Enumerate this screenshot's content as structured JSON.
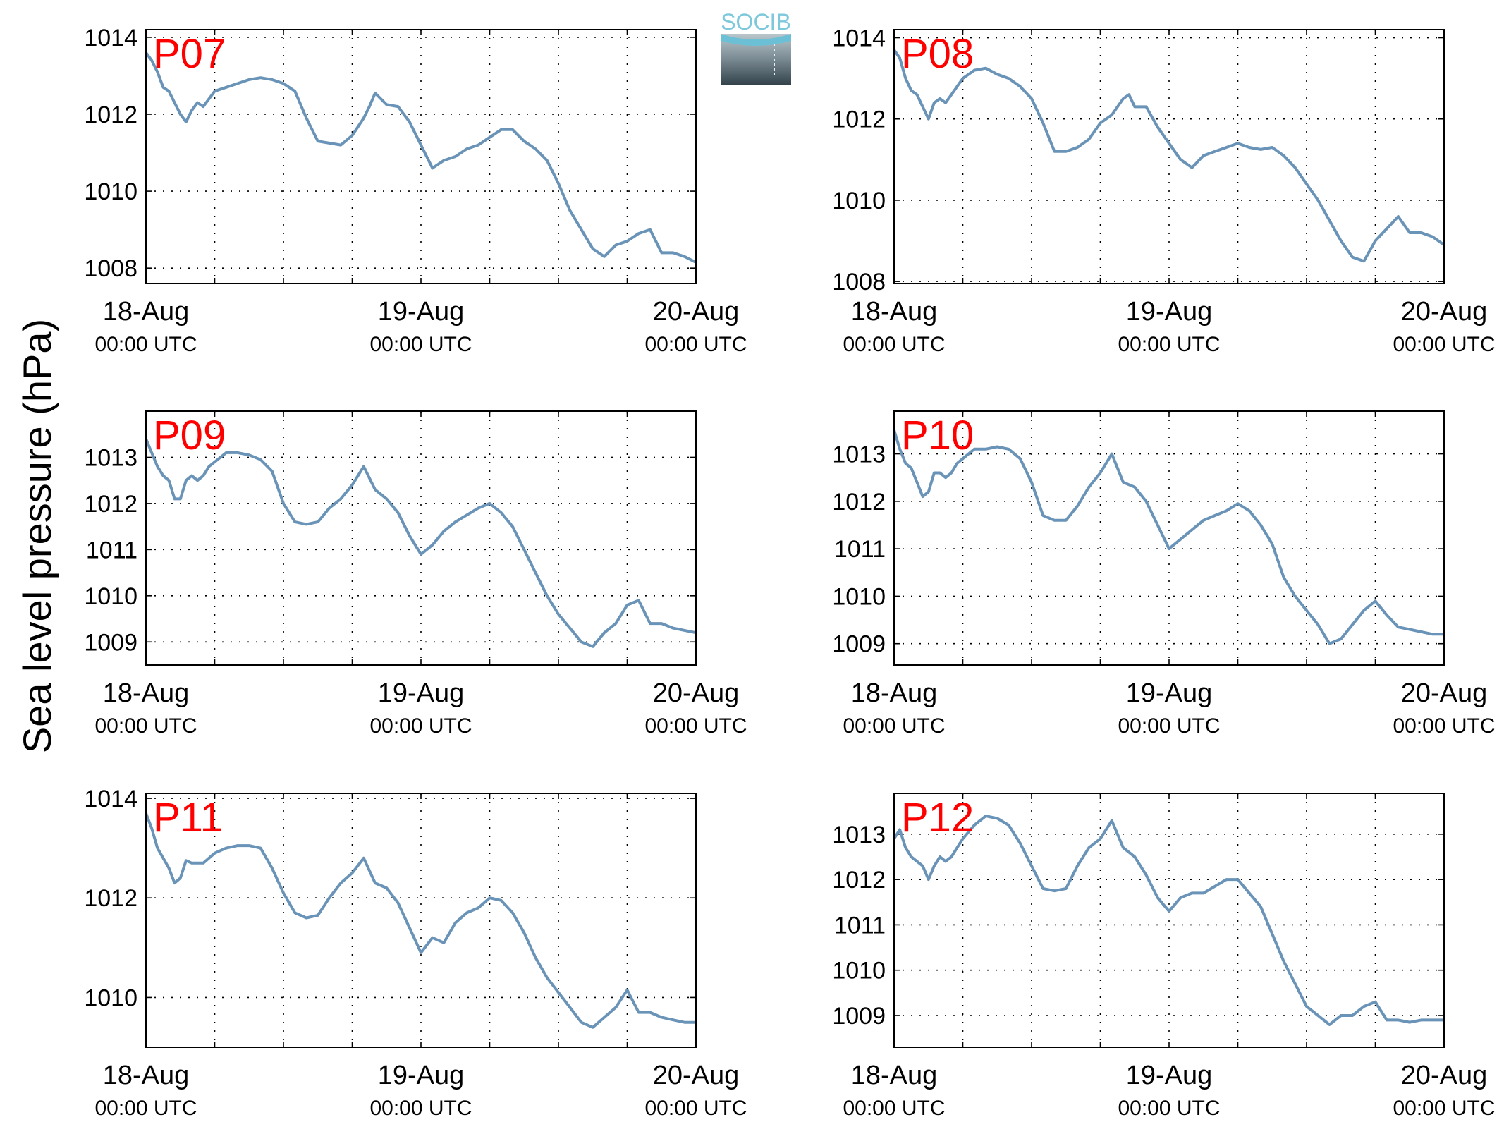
{
  "figure": {
    "ylabel": "Sea level pressure (hPa)",
    "logo_text": "SOCIB"
  },
  "colors": {
    "series_line": "#6a93b8",
    "panel_label": "#ff0000",
    "logo_text": "#7ec8dc",
    "axis": "#000000"
  },
  "chart_data": [
    {
      "type": "line",
      "title": "P07",
      "xlabel": "",
      "ylabel": "",
      "x_ticks": [
        {
          "date": "18-Aug",
          "time": "00:00 UTC"
        },
        {
          "date": "19-Aug",
          "time": "00:00 UTC"
        },
        {
          "date": "20-Aug",
          "time": "00:00 UTC"
        }
      ],
      "xlim": [
        0,
        48
      ],
      "ylim": [
        1007.6,
        1014.2
      ],
      "yticks": [
        1008,
        1010,
        1012,
        1014
      ],
      "grid": true,
      "series": [
        {
          "x": [
            0,
            0.5,
            1,
            1.5,
            2,
            2.5,
            3,
            3.5,
            4,
            4.5,
            5,
            5.5,
            6,
            7,
            8,
            9,
            10,
            11,
            12,
            13,
            14,
            15,
            16,
            17,
            18,
            19,
            19.5,
            20,
            21,
            22,
            23,
            24,
            25,
            26,
            27,
            28,
            29,
            30,
            31,
            32,
            33,
            34,
            35,
            36,
            37,
            38,
            39,
            40,
            41,
            42,
            43,
            44,
            45,
            46,
            47,
            48
          ],
          "y": [
            1013.6,
            1013.4,
            1013.1,
            1012.7,
            1012.6,
            1012.3,
            1012.0,
            1011.8,
            1012.1,
            1012.3,
            1012.2,
            1012.4,
            1012.6,
            1012.7,
            1012.8,
            1012.9,
            1012.95,
            1012.9,
            1012.8,
            1012.6,
            1011.9,
            1011.3,
            1011.25,
            1011.2,
            1011.45,
            1011.9,
            1012.2,
            1012.55,
            1012.25,
            1012.2,
            1011.8,
            1011.2,
            1010.6,
            1010.8,
            1010.9,
            1011.1,
            1011.2,
            1011.4,
            1011.6,
            1011.6,
            1011.3,
            1011.1,
            1010.8,
            1010.2,
            1009.5,
            1009.0,
            1008.5,
            1008.3,
            1008.6,
            1008.7,
            1008.9,
            1009.0,
            1008.4,
            1008.4,
            1008.3,
            1008.15
          ]
        }
      ]
    },
    {
      "type": "line",
      "title": "P08",
      "xlabel": "",
      "ylabel": "",
      "x_ticks": [
        {
          "date": "18-Aug",
          "time": "00:00 UTC"
        },
        {
          "date": "19-Aug",
          "time": "00:00 UTC"
        },
        {
          "date": "20-Aug",
          "time": "00:00 UTC"
        }
      ],
      "xlim": [
        0,
        48
      ],
      "ylim": [
        1007.95,
        1014.2
      ],
      "yticks": [
        1008,
        1010,
        1012,
        1014
      ],
      "grid": true,
      "series": [
        {
          "x": [
            0,
            0.5,
            1,
            1.5,
            2,
            2.5,
            3,
            3.5,
            4,
            4.5,
            5,
            5.5,
            6,
            7,
            8,
            9,
            10,
            11,
            12,
            13,
            14,
            15,
            16,
            17,
            18,
            19,
            20,
            20.5,
            21,
            22,
            23,
            24,
            25,
            26,
            27,
            28,
            29,
            30,
            31,
            32,
            33,
            34,
            35,
            36,
            37,
            38,
            39,
            40,
            41,
            42,
            43,
            44,
            45,
            46,
            47,
            48
          ],
          "y": [
            1013.7,
            1013.5,
            1013.0,
            1012.7,
            1012.6,
            1012.3,
            1012.0,
            1012.4,
            1012.5,
            1012.4,
            1012.6,
            1012.8,
            1013.0,
            1013.2,
            1013.25,
            1013.1,
            1013.0,
            1012.8,
            1012.5,
            1011.9,
            1011.2,
            1011.2,
            1011.3,
            1011.5,
            1011.9,
            1012.1,
            1012.5,
            1012.6,
            1012.3,
            1012.3,
            1011.8,
            1011.4,
            1011.0,
            1010.8,
            1011.1,
            1011.2,
            1011.3,
            1011.4,
            1011.3,
            1011.25,
            1011.3,
            1011.1,
            1010.8,
            1010.4,
            1010.0,
            1009.5,
            1009.0,
            1008.6,
            1008.5,
            1009.0,
            1009.3,
            1009.6,
            1009.2,
            1009.2,
            1009.1,
            1008.9
          ]
        }
      ]
    },
    {
      "type": "line",
      "title": "P09",
      "xlabel": "",
      "ylabel": "",
      "x_ticks": [
        {
          "date": "18-Aug",
          "time": "00:00 UTC"
        },
        {
          "date": "19-Aug",
          "time": "00:00 UTC"
        },
        {
          "date": "20-Aug",
          "time": "00:00 UTC"
        }
      ],
      "xlim": [
        0,
        48
      ],
      "ylim": [
        1008.5,
        1014.0
      ],
      "yticks": [
        1009,
        1010,
        1011,
        1012,
        1013
      ],
      "grid": true,
      "series": [
        {
          "x": [
            0,
            0.5,
            1,
            1.5,
            2,
            2.5,
            3,
            3.5,
            4,
            4.5,
            5,
            5.5,
            6,
            7,
            8,
            9,
            10,
            11,
            12,
            13,
            14,
            15,
            16,
            17,
            18,
            19,
            20,
            21,
            22,
            23,
            24,
            25,
            26,
            27,
            28,
            29,
            30,
            31,
            32,
            33,
            34,
            35,
            36,
            37,
            38,
            39,
            40,
            41,
            42,
            43,
            44,
            45,
            46,
            47,
            48
          ],
          "y": [
            1013.4,
            1013.1,
            1012.8,
            1012.6,
            1012.5,
            1012.1,
            1012.1,
            1012.5,
            1012.6,
            1012.5,
            1012.6,
            1012.8,
            1012.9,
            1013.1,
            1013.1,
            1013.05,
            1012.95,
            1012.7,
            1012.0,
            1011.6,
            1011.55,
            1011.6,
            1011.9,
            1012.1,
            1012.4,
            1012.8,
            1012.3,
            1012.1,
            1011.8,
            1011.3,
            1010.9,
            1011.1,
            1011.4,
            1011.6,
            1011.75,
            1011.9,
            1012.0,
            1011.8,
            1011.5,
            1011.0,
            1010.5,
            1010.0,
            1009.6,
            1009.3,
            1009.0,
            1008.9,
            1009.2,
            1009.4,
            1009.8,
            1009.9,
            1009.4,
            1009.4,
            1009.3,
            1009.25,
            1009.2
          ]
        }
      ]
    },
    {
      "type": "line",
      "title": "P10",
      "xlabel": "",
      "ylabel": "",
      "x_ticks": [
        {
          "date": "18-Aug",
          "time": "00:00 UTC"
        },
        {
          "date": "19-Aug",
          "time": "00:00 UTC"
        },
        {
          "date": "20-Aug",
          "time": "00:00 UTC"
        }
      ],
      "xlim": [
        0,
        48
      ],
      "ylim": [
        1008.55,
        1013.9
      ],
      "yticks": [
        1009,
        1010,
        1011,
        1012,
        1013
      ],
      "grid": true,
      "series": [
        {
          "x": [
            0,
            0.5,
            1,
            1.5,
            2,
            2.5,
            3,
            3.5,
            4,
            4.5,
            5,
            5.5,
            6,
            7,
            8,
            9,
            10,
            11,
            12,
            13,
            14,
            15,
            16,
            17,
            18,
            19,
            20,
            21,
            22,
            23,
            24,
            25,
            26,
            27,
            28,
            29,
            30,
            31,
            32,
            33,
            34,
            35,
            36,
            37,
            38,
            39,
            40,
            41,
            42,
            43,
            44,
            45,
            46,
            47,
            48
          ],
          "y": [
            1013.5,
            1013.1,
            1012.8,
            1012.7,
            1012.4,
            1012.1,
            1012.2,
            1012.6,
            1012.6,
            1012.5,
            1012.6,
            1012.8,
            1012.9,
            1013.1,
            1013.1,
            1013.15,
            1013.1,
            1012.9,
            1012.4,
            1011.7,
            1011.6,
            1011.6,
            1011.9,
            1012.3,
            1012.6,
            1013.0,
            1012.4,
            1012.3,
            1012.0,
            1011.5,
            1011.0,
            1011.2,
            1011.4,
            1011.6,
            1011.7,
            1011.8,
            1011.95,
            1011.8,
            1011.5,
            1011.1,
            1010.4,
            1010.0,
            1009.7,
            1009.4,
            1009.0,
            1009.1,
            1009.4,
            1009.7,
            1009.9,
            1009.6,
            1009.35,
            1009.3,
            1009.25,
            1009.2,
            1009.2
          ]
        }
      ]
    },
    {
      "type": "line",
      "title": "P11",
      "xlabel": "",
      "ylabel": "",
      "x_ticks": [
        {
          "date": "18-Aug",
          "time": "00:00 UTC"
        },
        {
          "date": "19-Aug",
          "time": "00:00 UTC"
        },
        {
          "date": "20-Aug",
          "time": "00:00 UTC"
        }
      ],
      "xlim": [
        0,
        48
      ],
      "ylim": [
        1009.0,
        1014.1
      ],
      "yticks": [
        1010,
        1012,
        1014
      ],
      "grid": true,
      "series": [
        {
          "x": [
            0,
            0.5,
            1,
            1.5,
            2,
            2.5,
            3,
            3.5,
            4,
            4.5,
            5,
            5.5,
            6,
            7,
            8,
            9,
            10,
            11,
            12,
            13,
            14,
            15,
            16,
            17,
            18,
            19,
            20,
            21,
            22,
            23,
            24,
            25,
            26,
            27,
            28,
            29,
            30,
            31,
            32,
            33,
            34,
            35,
            36,
            37,
            38,
            39,
            40,
            41,
            42,
            43,
            44,
            45,
            46,
            47,
            48
          ],
          "y": [
            1013.7,
            1013.4,
            1013.0,
            1012.8,
            1012.6,
            1012.3,
            1012.4,
            1012.75,
            1012.7,
            1012.7,
            1012.7,
            1012.8,
            1012.9,
            1013.0,
            1013.05,
            1013.05,
            1013.0,
            1012.6,
            1012.1,
            1011.7,
            1011.6,
            1011.65,
            1012.0,
            1012.3,
            1012.5,
            1012.8,
            1012.3,
            1012.2,
            1011.9,
            1011.4,
            1010.9,
            1011.2,
            1011.1,
            1011.5,
            1011.7,
            1011.8,
            1012.0,
            1011.95,
            1011.7,
            1011.3,
            1010.8,
            1010.4,
            1010.1,
            1009.8,
            1009.5,
            1009.4,
            1009.6,
            1009.8,
            1010.15,
            1009.7,
            1009.7,
            1009.6,
            1009.55,
            1009.5,
            1009.5
          ]
        }
      ]
    },
    {
      "type": "line",
      "title": "P12",
      "xlabel": "",
      "ylabel": "",
      "x_ticks": [
        {
          "date": "18-Aug",
          "time": "00:00 UTC"
        },
        {
          "date": "19-Aug",
          "time": "00:00 UTC"
        },
        {
          "date": "20-Aug",
          "time": "00:00 UTC"
        }
      ],
      "xlim": [
        0,
        48
      ],
      "ylim": [
        1008.3,
        1013.9
      ],
      "yticks": [
        1009,
        1010,
        1011,
        1012,
        1013
      ],
      "grid": true,
      "series": [
        {
          "x": [
            0,
            0.5,
            1,
            1.5,
            2,
            2.5,
            3,
            3.5,
            4,
            4.5,
            5,
            5.5,
            6,
            7,
            8,
            9,
            10,
            11,
            12,
            13,
            14,
            15,
            16,
            17,
            18,
            19,
            20,
            21,
            22,
            23,
            24,
            25,
            26,
            27,
            28,
            29,
            30,
            31,
            32,
            33,
            34,
            35,
            36,
            37,
            38,
            39,
            40,
            41,
            42,
            43,
            44,
            45,
            46,
            47,
            48
          ],
          "y": [
            1012.9,
            1013.1,
            1012.7,
            1012.5,
            1012.4,
            1012.3,
            1012.0,
            1012.3,
            1012.5,
            1012.4,
            1012.5,
            1012.7,
            1012.9,
            1013.2,
            1013.4,
            1013.35,
            1013.2,
            1012.8,
            1012.3,
            1011.8,
            1011.75,
            1011.8,
            1012.3,
            1012.7,
            1012.9,
            1013.3,
            1012.7,
            1012.5,
            1012.1,
            1011.6,
            1011.3,
            1011.6,
            1011.7,
            1011.7,
            1011.85,
            1012.0,
            1012.0,
            1011.7,
            1011.4,
            1010.8,
            1010.2,
            1009.7,
            1009.2,
            1009.0,
            1008.8,
            1009.0,
            1009.0,
            1009.2,
            1009.3,
            1008.9,
            1008.9,
            1008.85,
            1008.9,
            1008.9,
            1008.9
          ]
        }
      ]
    }
  ]
}
